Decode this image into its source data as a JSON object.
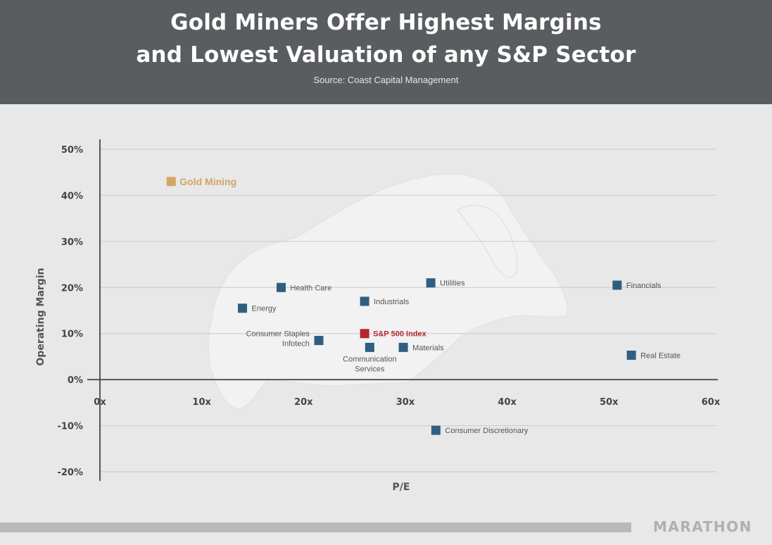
{
  "header": {
    "title_line1": "Gold Miners Offer Highest Margins",
    "title_line2": "and Lowest Valuation of any S&P Sector",
    "source": "Source: Coast Capital Management"
  },
  "footer": {
    "brand": "MARATHON"
  },
  "colors": {
    "header_bg": "#5a5d5f",
    "background": "#e8e8e8",
    "sector_marker": "#2e5f7f",
    "gold_marker": "#d4a466",
    "index_marker": "#b5262f"
  },
  "chart_data": {
    "type": "scatter",
    "title": "Gold Miners Offer Highest Margins and Lowest Valuation of any S&P Sector",
    "xlabel": "P/E",
    "ylabel": "Operating Margin",
    "xlim": [
      0,
      60
    ],
    "ylim": [
      -20,
      50
    ],
    "x_ticks": [
      0,
      10,
      20,
      30,
      40,
      50,
      60
    ],
    "x_tick_labels": [
      "0x",
      "10x",
      "20x",
      "30x",
      "40x",
      "50x",
      "60x"
    ],
    "y_ticks": [
      50,
      40,
      30,
      20,
      10,
      0,
      -10,
      -20
    ],
    "y_tick_labels": [
      "50%",
      "40%",
      "30%",
      "20%",
      "10%",
      "0%",
      "-10%",
      "-20%"
    ],
    "grid": "horizontal",
    "points": [
      {
        "label": "Gold Mining",
        "x": 7,
        "y": 43,
        "group": "gold"
      },
      {
        "label": "Health Care",
        "x": 17.8,
        "y": 20,
        "group": "sector"
      },
      {
        "label": "Energy",
        "x": 14,
        "y": 15.5,
        "group": "sector"
      },
      {
        "label": "Consumer Staples\nInfotech",
        "x": 21.5,
        "y": 8.5,
        "group": "sector"
      },
      {
        "label": "Industrials",
        "x": 26,
        "y": 17,
        "group": "sector"
      },
      {
        "label": "S&P 500 Index",
        "x": 26,
        "y": 10,
        "group": "index"
      },
      {
        "label": "Communication\nServices",
        "x": 26.5,
        "y": 7,
        "group": "sector"
      },
      {
        "label": "Utilities",
        "x": 32.5,
        "y": 21,
        "group": "sector"
      },
      {
        "label": "Materials",
        "x": 29.8,
        "y": 7,
        "group": "sector"
      },
      {
        "label": "Consumer Discretionary",
        "x": 33,
        "y": -11,
        "group": "sector"
      },
      {
        "label": "Financials",
        "x": 50.8,
        "y": 20.5,
        "group": "sector"
      },
      {
        "label": "Real Estate",
        "x": 52.2,
        "y": 5.3,
        "group": "sector"
      }
    ]
  }
}
